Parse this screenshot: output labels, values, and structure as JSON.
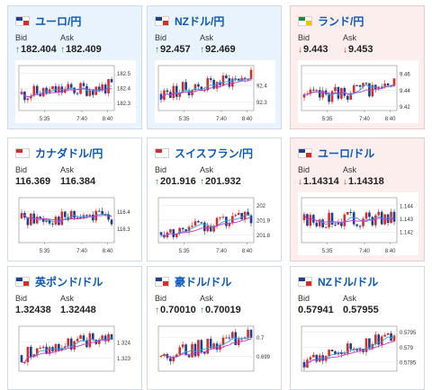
{
  "cards": [
    {
      "pair": "ユーロ/円",
      "trend": "up",
      "flag": [
        "#1d3f8f",
        "#d0302a"
      ],
      "bid_label": "Bid",
      "ask_label": "Ask",
      "bid_dir": "up",
      "bid": "182.404",
      "ask_dir": "up",
      "ask": "182.409",
      "chart_data": {
        "type": "candlestick",
        "x_ticks": [
          "5:35",
          "7:40",
          "8:40"
        ],
        "y_ticks": [
          "182.5",
          "182.4",
          "182.3"
        ],
        "ylim": [
          182.25,
          182.55
        ],
        "seed": 11,
        "start": 182.36,
        "end": 182.41
      }
    },
    {
      "pair": "NZドル/円",
      "trend": "up",
      "flag": [
        "#1d3f8f",
        "#d0302a"
      ],
      "bid_label": "Bid",
      "ask_label": "Ask",
      "bid_dir": "up",
      "bid": "92.457",
      "ask_dir": "up",
      "ask": "92.469",
      "chart_data": {
        "type": "candlestick",
        "x_ticks": [
          "5:35",
          "7:40",
          "8:40"
        ],
        "y_ticks": [
          "92.4",
          "92.3"
        ],
        "ylim": [
          92.25,
          92.52
        ],
        "seed": 23,
        "start": 92.35,
        "end": 92.46
      }
    },
    {
      "pair": "ランド/円",
      "trend": "down",
      "flag": [
        "#1b8a3a",
        "#f2c200"
      ],
      "bid_label": "Bid",
      "ask_label": "Ask",
      "bid_dir": "down",
      "bid": "9.443",
      "ask_dir": "down",
      "ask": "9.453",
      "chart_data": {
        "type": "candlestick",
        "x_ticks": [
          "5:35",
          "7:40",
          "8:40"
        ],
        "y_ticks": [
          "9.46",
          "9.44",
          "9.42"
        ],
        "ylim": [
          9.415,
          9.47
        ],
        "seed": 37,
        "start": 9.431,
        "end": 9.445
      }
    },
    {
      "pair": "カナダドル/円",
      "trend": "flat",
      "flag": [
        "#d0302a",
        "#ffffff"
      ],
      "bid_label": "Bid",
      "ask_label": "Ask",
      "bid_dir": "",
      "bid": "116.369",
      "ask_dir": "",
      "ask": "116.384",
      "chart_data": {
        "type": "candlestick",
        "x_ticks": [
          "5:35",
          "7:40",
          "8:40"
        ],
        "y_ticks": [
          "116.4",
          "116.3"
        ],
        "ylim": [
          116.22,
          116.48
        ],
        "seed": 41,
        "start": 116.36,
        "end": 116.37
      }
    },
    {
      "pair": "スイスフラン/円",
      "trend": "flat",
      "flag": [
        "#d0302a",
        "#ffffff"
      ],
      "bid_label": "Bid",
      "ask_label": "Ask",
      "bid_dir": "up",
      "bid": "201.916",
      "ask_dir": "up",
      "ask": "201.932",
      "chart_data": {
        "type": "candlestick",
        "x_ticks": [
          "5:35",
          "7:40",
          "8:40"
        ],
        "y_ticks": [
          "202",
          "201.9",
          "201.8"
        ],
        "ylim": [
          201.75,
          202.05
        ],
        "seed": 53,
        "start": 201.82,
        "end": 201.92
      }
    },
    {
      "pair": "ユーロ/ドル",
      "trend": "down",
      "flag": [
        "#1d3f8f",
        "#d0302a"
      ],
      "bid_label": "Bid",
      "ask_label": "Ask",
      "bid_dir": "down",
      "bid": "1.14314",
      "ask_dir": "down",
      "ask": "1.14318",
      "chart_data": {
        "type": "candlestick",
        "x_ticks": [
          "5:35",
          "7:40",
          "8:40"
        ],
        "y_ticks": [
          "1.144",
          "1.143",
          "1.142"
        ],
        "ylim": [
          1.1412,
          1.1446
        ],
        "seed": 67,
        "start": 1.1429,
        "end": 1.1431
      }
    },
    {
      "pair": "英ポンド/ドル",
      "trend": "flat",
      "flag": [
        "#1d3f8f",
        "#d0302a"
      ],
      "bid_label": "Bid",
      "ask_label": "Ask",
      "bid_dir": "",
      "bid": "1.32438",
      "ask_dir": "",
      "ask": "1.32448",
      "chart_data": {
        "type": "candlestick",
        "x_ticks": [],
        "y_ticks": [
          "1.324",
          "1.323"
        ],
        "ylim": [
          1.3222,
          1.325
        ],
        "seed": 71,
        "start": 1.3232,
        "end": 1.3244
      }
    },
    {
      "pair": "豪ドル/ドル",
      "trend": "flat",
      "flag": [
        "#1d3f8f",
        "#d0302a"
      ],
      "bid_label": "Bid",
      "ask_label": "Ask",
      "bid_dir": "up",
      "bid": "0.70010",
      "ask_dir": "up",
      "ask": "0.70019",
      "chart_data": {
        "type": "candlestick",
        "x_ticks": [],
        "y_ticks": [
          "0.7",
          "0.699"
        ],
        "ylim": [
          0.6982,
          0.7006
        ],
        "seed": 83,
        "start": 0.699,
        "end": 0.7001
      }
    },
    {
      "pair": "NZドル/ドル",
      "trend": "flat",
      "flag": [
        "#1d3f8f",
        "#d0302a"
      ],
      "bid_label": "Bid",
      "ask_label": "Ask",
      "bid_dir": "",
      "bid": "0.57941",
      "ask_dir": "",
      "ask": "0.57955",
      "chart_data": {
        "type": "candlestick",
        "x_ticks": [],
        "y_ticks": [
          "0.5795",
          "0.579",
          "0.5785"
        ],
        "ylim": [
          0.5782,
          0.5797
        ],
        "seed": 97,
        "start": 0.5785,
        "end": 0.5794
      }
    }
  ],
  "arrows": {
    "up": "↑",
    "down": "↓"
  }
}
